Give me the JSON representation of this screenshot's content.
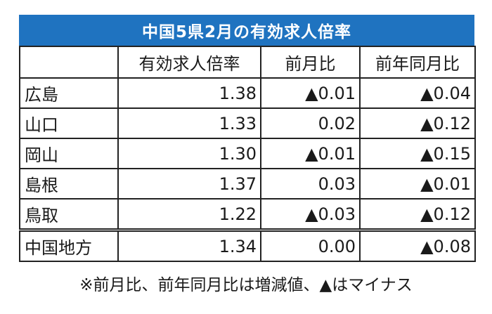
{
  "table": {
    "title": "中国5県2月の有効求人倍率",
    "headers": [
      "",
      "有効求人倍率",
      "前月比",
      "前年同月比"
    ],
    "rows": [
      [
        "広島",
        "1.38",
        "▲0.01",
        "▲0.04"
      ],
      [
        "山口",
        "1.33",
        "0.02",
        "▲0.12"
      ],
      [
        "岡山",
        "1.30",
        "▲0.01",
        "▲0.15"
      ],
      [
        "島根",
        "1.37",
        "0.03",
        "▲0.01"
      ],
      [
        "鳥取",
        "1.22",
        "▲0.03",
        "▲0.12"
      ]
    ],
    "total_row": [
      "中国地方",
      "1.34",
      "0.00",
      "▲0.08"
    ],
    "note": "※前月比、前年同月比は増減値、▲はマイナス",
    "colors": {
      "title_bg": "#1f73c0",
      "title_text": "#ffffff"
    }
  }
}
